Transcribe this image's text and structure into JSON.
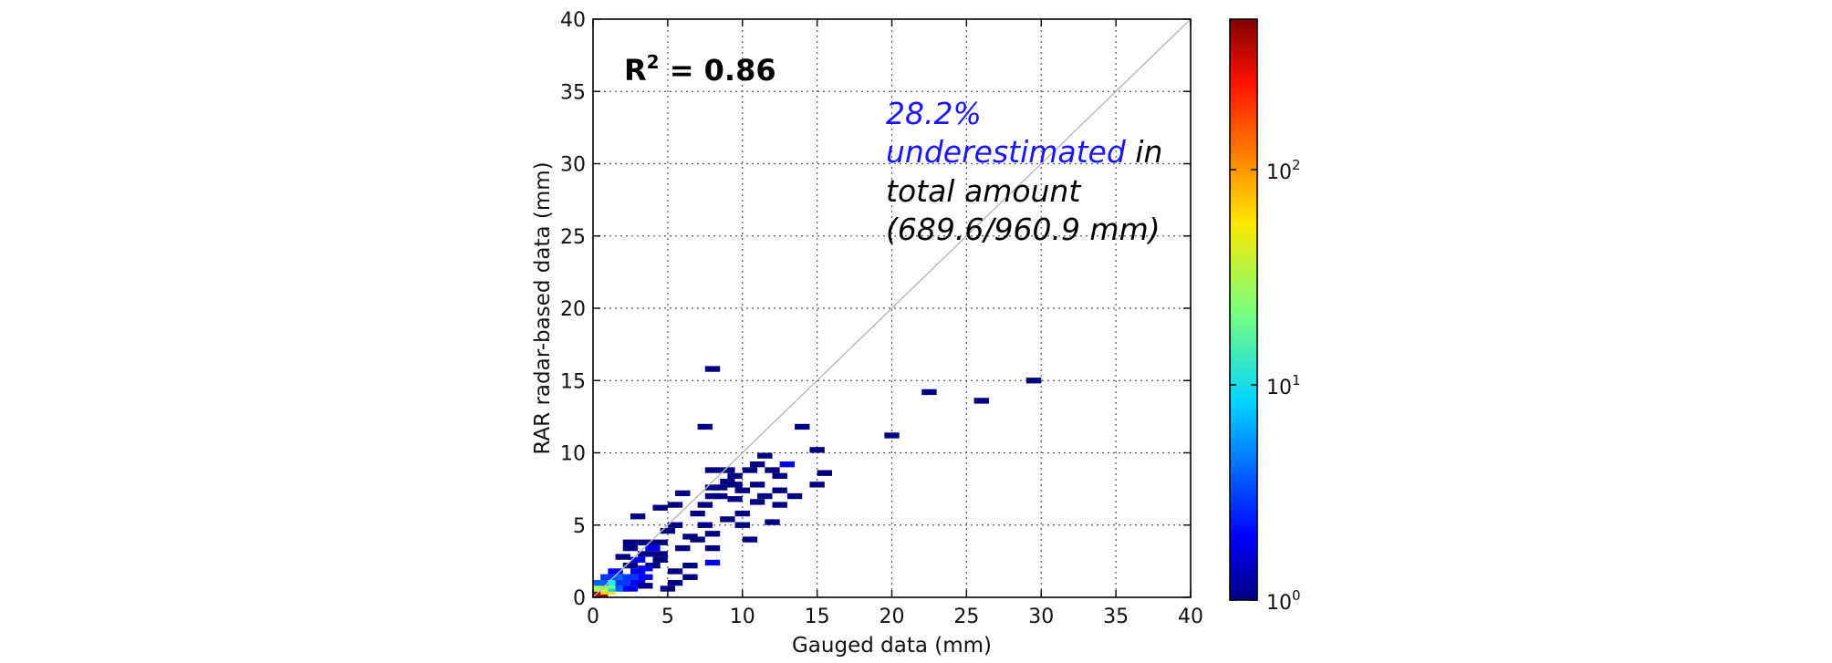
{
  "chart_data": {
    "type": "heatmap",
    "title": "",
    "xlabel": "Gauged data (mm)",
    "ylabel": "RAR radar-based data (mm)",
    "xlim": [
      0,
      40
    ],
    "ylim": [
      0,
      40
    ],
    "xticks": [
      "0",
      "5",
      "10",
      "15",
      "20",
      "25",
      "30",
      "35",
      "40"
    ],
    "yticks": [
      "0",
      "5",
      "10",
      "15",
      "20",
      "25",
      "30",
      "35",
      "40"
    ],
    "grid": true,
    "reference_line": "1:1",
    "annotations": {
      "r2_prefix": "R",
      "r2_sup": "2",
      "r2_rest": " = 0.86",
      "line1": "28.2%",
      "line2_colored": "underestimated",
      "line2_rest": " in",
      "line3": "total amount",
      "line4": "(689.6/960.9 mm)",
      "highlight_color": "#1a14ff"
    },
    "colorbar": {
      "scale": "log",
      "range": [
        1,
        500
      ],
      "colormap": "jet",
      "ticks": [
        {
          "value": 1,
          "base": "10",
          "exp": "0"
        },
        {
          "value": 10,
          "base": "10",
          "exp": "1"
        },
        {
          "value": 100,
          "base": "10",
          "exp": "2"
        }
      ]
    },
    "bin_size": [
      1,
      0.4
    ],
    "cells": [
      [
        0.0,
        0.0,
        400
      ],
      [
        0.5,
        0.2,
        60
      ],
      [
        1.0,
        0.4,
        8
      ],
      [
        0.0,
        0.4,
        30
      ],
      [
        0.5,
        0.6,
        25
      ],
      [
        1.0,
        0.8,
        10
      ],
      [
        0.0,
        0.8,
        4
      ],
      [
        1.5,
        0.4,
        4
      ],
      [
        1.5,
        0.8,
        3
      ],
      [
        1.5,
        1.2,
        4
      ],
      [
        0.5,
        1.2,
        3
      ],
      [
        1.0,
        1.6,
        2
      ],
      [
        2.0,
        0.4,
        2
      ],
      [
        2.5,
        0.8,
        2
      ],
      [
        2.0,
        1.2,
        3
      ],
      [
        3.0,
        1.2,
        2
      ],
      [
        2.5,
        1.6,
        2
      ],
      [
        3.0,
        0.6,
        1
      ],
      [
        2.0,
        2.0,
        1
      ],
      [
        3.5,
        2.0,
        1
      ],
      [
        2.5,
        2.4,
        2
      ],
      [
        3.0,
        2.8,
        1
      ],
      [
        4.0,
        2.4,
        1
      ],
      [
        2.0,
        3.2,
        1
      ],
      [
        3.5,
        3.2,
        2
      ],
      [
        4.0,
        3.6,
        1
      ],
      [
        3.0,
        3.6,
        1
      ],
      [
        2.0,
        3.6,
        1
      ],
      [
        4.5,
        4.4,
        1
      ],
      [
        5.0,
        4.8,
        1
      ],
      [
        2.5,
        5.4,
        1
      ],
      [
        4.0,
        6.0,
        1
      ],
      [
        5.0,
        6.2,
        1
      ],
      [
        5.5,
        7.0,
        1
      ],
      [
        6.0,
        4.0,
        1
      ],
      [
        5.5,
        3.2,
        1
      ],
      [
        5.0,
        1.6,
        1
      ],
      [
        6.0,
        1.2,
        1
      ],
      [
        5.0,
        0.8,
        1
      ],
      [
        4.5,
        0.4,
        1
      ],
      [
        6.5,
        3.8,
        1
      ],
      [
        7.0,
        4.8,
        1
      ],
      [
        6.5,
        5.6,
        1
      ],
      [
        7.0,
        6.2,
        1
      ],
      [
        7.5,
        6.8,
        1
      ],
      [
        8.0,
        7.4,
        1
      ],
      [
        7.5,
        8.6,
        1
      ],
      [
        8.5,
        8.6,
        1
      ],
      [
        9.0,
        8.2,
        1
      ],
      [
        9.0,
        7.6,
        1
      ],
      [
        9.5,
        7.2,
        1
      ],
      [
        10.0,
        8.6,
        1
      ],
      [
        10.5,
        9.0,
        1
      ],
      [
        11.0,
        9.6,
        1
      ],
      [
        11.5,
        8.6,
        1
      ],
      [
        12.0,
        8.2,
        1
      ],
      [
        12.5,
        9.0,
        2
      ],
      [
        13.0,
        6.8,
        1
      ],
      [
        12.0,
        6.2,
        1
      ],
      [
        11.0,
        6.8,
        1
      ],
      [
        10.5,
        6.4,
        1
      ],
      [
        9.5,
        5.6,
        1
      ],
      [
        8.5,
        5.2,
        1
      ],
      [
        7.5,
        4.2,
        1
      ],
      [
        7.5,
        3.2,
        1
      ],
      [
        7.5,
        2.2,
        2
      ],
      [
        9.5,
        4.8,
        1
      ],
      [
        10.0,
        3.8,
        1
      ],
      [
        11.5,
        5.0,
        1
      ],
      [
        12.0,
        7.2,
        1
      ],
      [
        7.5,
        7.4,
        1
      ],
      [
        8.0,
        6.8,
        1
      ],
      [
        7.0,
        11.6,
        1
      ],
      [
        7.5,
        15.6,
        1
      ],
      [
        13.5,
        11.6,
        1
      ],
      [
        14.5,
        10.0,
        1
      ],
      [
        14.5,
        7.6,
        1
      ],
      [
        15.0,
        8.4,
        1
      ],
      [
        19.5,
        11.0,
        1
      ],
      [
        22.0,
        14.0,
        1
      ],
      [
        25.5,
        13.4,
        1
      ],
      [
        29.0,
        14.8,
        1
      ],
      [
        3.0,
        1.8,
        2
      ],
      [
        4.0,
        2.8,
        1
      ],
      [
        6.0,
        2.0,
        1
      ],
      [
        1.5,
        2.6,
        1
      ],
      [
        8.5,
        7.8,
        1
      ],
      [
        9.0,
        6.6,
        1
      ],
      [
        10.5,
        7.6,
        1
      ]
    ]
  }
}
